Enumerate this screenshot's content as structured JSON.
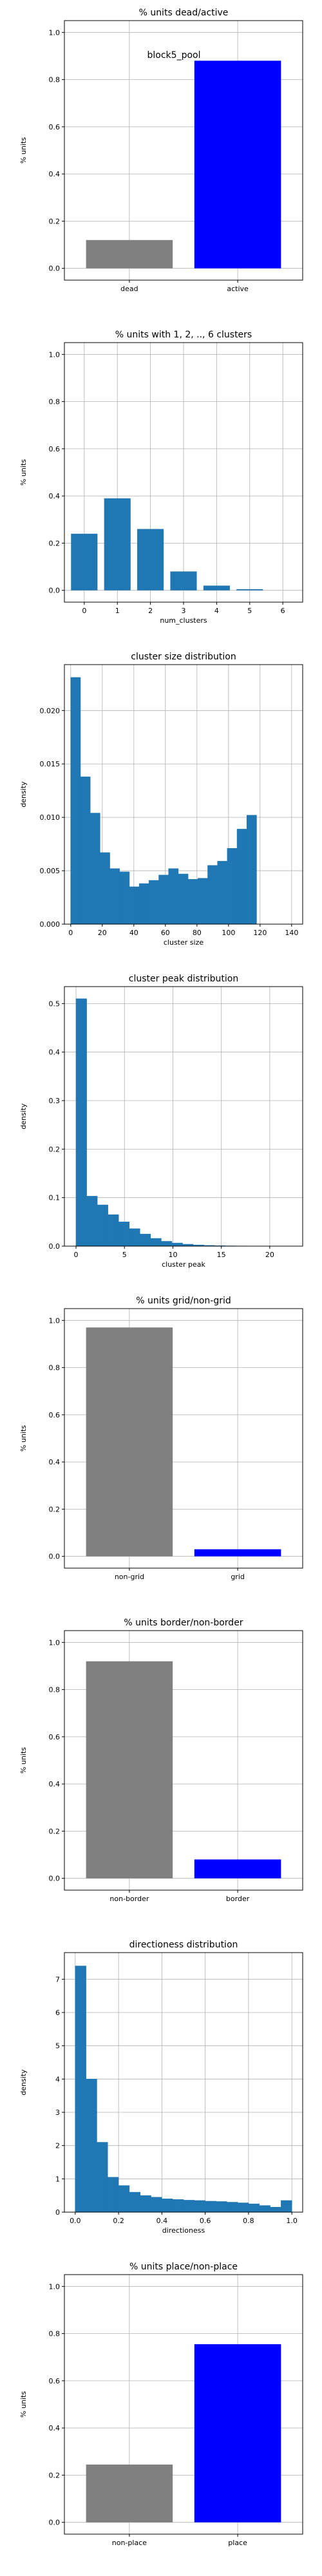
{
  "chart_data": [
    {
      "type": "bar",
      "title": "% units dead/active",
      "annotation": "block5_pool",
      "xlabel": "",
      "ylabel": "% units",
      "categories": [
        "dead",
        "active"
      ],
      "values": [
        0.12,
        0.88
      ],
      "colors": [
        "#808080",
        "#0000ff"
      ],
      "ylim": [
        -0.05,
        1.05
      ],
      "yticks": [
        0.0,
        0.2,
        0.4,
        0.6,
        0.8,
        1.0
      ],
      "grid": true
    },
    {
      "type": "bar",
      "title": "% units with 1, 2, .., 6 clusters",
      "xlabel": "num_clusters",
      "ylabel": "% units",
      "categories": [
        "0",
        "1",
        "2",
        "3",
        "4",
        "5",
        "6"
      ],
      "values": [
        0.24,
        0.39,
        0.26,
        0.08,
        0.02,
        0.005,
        0.0
      ],
      "colors": [
        "#1f77b4"
      ],
      "ylim": [
        -0.05,
        1.05
      ],
      "yticks": [
        0.0,
        0.2,
        0.4,
        0.6,
        0.8,
        1.0
      ],
      "grid": true
    },
    {
      "type": "histogram",
      "title": "cluster size distribution",
      "xlabel": "cluster size",
      "ylabel": "density",
      "bin_start": 0,
      "bin_width": 6.2,
      "values": [
        0.0231,
        0.0138,
        0.0104,
        0.0067,
        0.0052,
        0.0049,
        0.0035,
        0.0038,
        0.0041,
        0.0046,
        0.0052,
        0.0047,
        0.0042,
        0.0043,
        0.0055,
        0.0059,
        0.0071,
        0.0089,
        0.0102
      ],
      "xlim": [
        -4,
        147
      ],
      "ylim": [
        0,
        0.0243
      ],
      "xticks": [
        0,
        20,
        40,
        60,
        80,
        100,
        120,
        140
      ],
      "yticks": [
        0.0,
        0.005,
        0.01,
        0.015,
        0.02
      ],
      "ytick_labels": [
        "0.000",
        "0.005",
        "0.010",
        "0.015",
        "0.020"
      ],
      "colors": [
        "#1f77b4"
      ],
      "grid": true
    },
    {
      "type": "histogram",
      "title": "cluster peak distribution",
      "xlabel": "cluster peak",
      "ylabel": "density",
      "bin_start": 0,
      "bin_width": 1.1,
      "values": [
        0.51,
        0.103,
        0.085,
        0.065,
        0.05,
        0.036,
        0.025,
        0.016,
        0.01,
        0.0065,
        0.004,
        0.0025,
        0.0015,
        0.001,
        0.0006,
        0.0004,
        0.0003,
        0.0002,
        0.0001,
        0.0001
      ],
      "xlim": [
        -1.2,
        23.4
      ],
      "ylim": [
        0,
        0.535
      ],
      "xticks": [
        0,
        5,
        10,
        15,
        20
      ],
      "yticks": [
        0.0,
        0.1,
        0.2,
        0.3,
        0.4,
        0.5
      ],
      "colors": [
        "#1f77b4"
      ],
      "grid": true
    },
    {
      "type": "bar",
      "title": "% units grid/non-grid",
      "xlabel": "",
      "ylabel": "% units",
      "categories": [
        "non-grid",
        "grid"
      ],
      "values": [
        0.97,
        0.03
      ],
      "colors": [
        "#808080",
        "#0000ff"
      ],
      "ylim": [
        -0.05,
        1.05
      ],
      "yticks": [
        0.0,
        0.2,
        0.4,
        0.6,
        0.8,
        1.0
      ],
      "grid": true
    },
    {
      "type": "bar",
      "title": "% units border/non-border",
      "xlabel": "",
      "ylabel": "% units",
      "categories": [
        "non-border",
        "border"
      ],
      "values": [
        0.92,
        0.08
      ],
      "colors": [
        "#808080",
        "#0000ff"
      ],
      "ylim": [
        -0.05,
        1.05
      ],
      "yticks": [
        0.0,
        0.2,
        0.4,
        0.6,
        0.8,
        1.0
      ],
      "grid": true
    },
    {
      "type": "histogram",
      "title": "directioness distribution",
      "xlabel": "directioness",
      "ylabel": "density",
      "bin_start": 0,
      "bin_width": 0.05,
      "values": [
        7.4,
        4.0,
        2.1,
        1.05,
        0.8,
        0.6,
        0.5,
        0.45,
        0.4,
        0.38,
        0.36,
        0.35,
        0.33,
        0.32,
        0.3,
        0.28,
        0.25,
        0.2,
        0.15,
        0.35
      ],
      "xlim": [
        -0.05,
        1.05
      ],
      "ylim": [
        0,
        7.8
      ],
      "xticks": [
        0.0,
        0.2,
        0.4,
        0.6,
        0.8,
        1.0
      ],
      "yticks": [
        0,
        1,
        2,
        3,
        4,
        5,
        6,
        7
      ],
      "colors": [
        "#1f77b4"
      ],
      "grid": true
    },
    {
      "type": "bar",
      "title": "% units place/non-place",
      "xlabel": "",
      "ylabel": "% units",
      "categories": [
        "non-place",
        "place"
      ],
      "values": [
        0.245,
        0.755
      ],
      "colors": [
        "#808080",
        "#0000ff"
      ],
      "ylim": [
        -0.05,
        1.05
      ],
      "yticks": [
        0.0,
        0.2,
        0.4,
        0.6,
        0.8,
        1.0
      ],
      "grid": true
    }
  ]
}
